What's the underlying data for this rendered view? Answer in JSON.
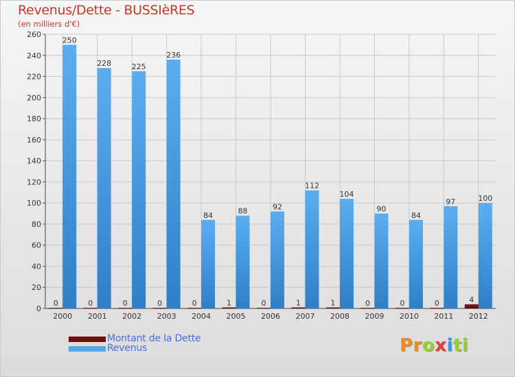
{
  "header": {
    "title": "Revenus/Dette - BUSSIèRES",
    "subtitle": "(en milliers d'€)"
  },
  "chart_data": {
    "type": "bar",
    "title": "Revenus/Dette - BUSSIèRES",
    "ylabel": "(en milliers d'€)",
    "xlabel": "",
    "categories": [
      "2000",
      "2001",
      "2002",
      "2003",
      "2004",
      "2005",
      "2006",
      "2007",
      "2008",
      "2009",
      "2010",
      "2011",
      "2012"
    ],
    "series": [
      {
        "name": "Montant de la Dette",
        "color": "#6b0f0f",
        "values": [
          0,
          0,
          0,
          0,
          0,
          1,
          0,
          1,
          1,
          0,
          0,
          0,
          4
        ],
        "labels": [
          "0",
          "0",
          "0",
          "0",
          "0",
          "1",
          "0",
          "1",
          "1",
          "0",
          "0",
          "0",
          "4"
        ]
      },
      {
        "name": "Revenus",
        "color": "#55a8e6",
        "values": [
          250,
          228,
          225,
          236,
          84,
          88,
          92,
          112,
          104,
          90,
          84,
          97,
          100
        ],
        "labels": [
          "250",
          "228",
          "225",
          "236",
          "84",
          "88",
          "92",
          "112",
          "104",
          "90",
          "84",
          "97",
          "100"
        ]
      }
    ],
    "ylim": [
      0,
      260
    ],
    "yticks": [
      "0",
      "20",
      "40",
      "60",
      "80",
      "100",
      "120",
      "140",
      "160",
      "180",
      "200",
      "220",
      "240",
      "260"
    ],
    "grid": true,
    "legend": "bottom-left"
  },
  "legend": {
    "items": [
      {
        "label": "Montant de la Dette",
        "color": "#6b0f0f"
      },
      {
        "label": "Revenus",
        "color": "#55a8e6"
      }
    ]
  },
  "logo": {
    "p1": "Pr",
    "p2": "o",
    "p3": "x",
    "p4": "i",
    "p5": "ti"
  }
}
